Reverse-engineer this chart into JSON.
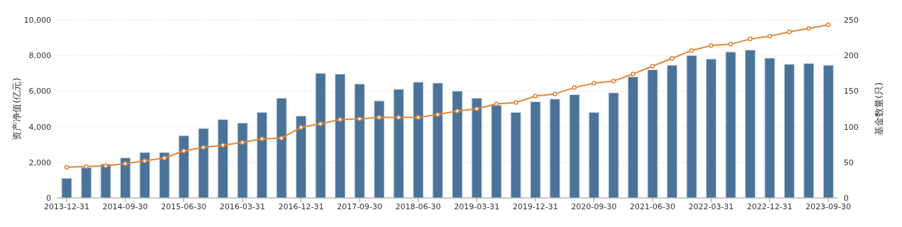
{
  "chart_data": {
    "type": "bar",
    "ylabel": "资产净值(亿元)",
    "y2label": "基金数量(只)",
    "categories": [
      "2013-12-31",
      null,
      null,
      "2014-09-30",
      null,
      null,
      "2015-06-30",
      null,
      null,
      "2016-03-31",
      null,
      null,
      "2016-12-31",
      null,
      null,
      "2017-09-30",
      null,
      null,
      "2018-06-30",
      null,
      null,
      "2019-03-31",
      null,
      null,
      "2019-12-31",
      null,
      null,
      "2020-09-30",
      null,
      null,
      "2021-06-30",
      null,
      null,
      "2022-03-31",
      null,
      null,
      "2022-12-31",
      null,
      null,
      "2023-09-30"
    ],
    "series": [
      {
        "color": "#4a7399",
        "values": [
          1100,
          1700,
          1900,
          2250,
          2550,
          2550,
          3500,
          3900,
          4400,
          4200,
          4800,
          5600,
          4600,
          7000,
          6950,
          6400,
          5450,
          6100,
          6500,
          6450,
          6000,
          5600,
          5200,
          4800,
          5400,
          5550,
          5800,
          4800,
          5900,
          6800,
          7200,
          7450,
          8000,
          7800,
          8200,
          8300,
          7850,
          7500,
          7550,
          7450
        ]
      },
      {
        "type": "line",
        "axis": "y2",
        "color": "#e0883a",
        "values": [
          43,
          44,
          45,
          48,
          52,
          56,
          66,
          71,
          74,
          78,
          83,
          84,
          99,
          104,
          110,
          111,
          113,
          113,
          113,
          117,
          122,
          125,
          132,
          134,
          143,
          146,
          155,
          161,
          164,
          174,
          185,
          196,
          207,
          214,
          216,
          223,
          227,
          233,
          238,
          243
        ]
      }
    ],
    "ylim": [
      0,
      10000
    ],
    "yticks": [
      0,
      {
        "value": 2000,
        "label": "2,000"
      },
      {
        "value": 4000,
        "label": "4,000"
      },
      {
        "value": 6000,
        "label": "6,000"
      },
      {
        "value": 8000,
        "label": "8,000"
      },
      {
        "value": 10000,
        "label": "10,000"
      }
    ],
    "y2lim": [
      0,
      250
    ],
    "y2ticks": [
      0,
      50,
      100,
      150,
      200,
      250
    ],
    "grid": "y",
    "marker": "circle",
    "line_style": "solid"
  }
}
